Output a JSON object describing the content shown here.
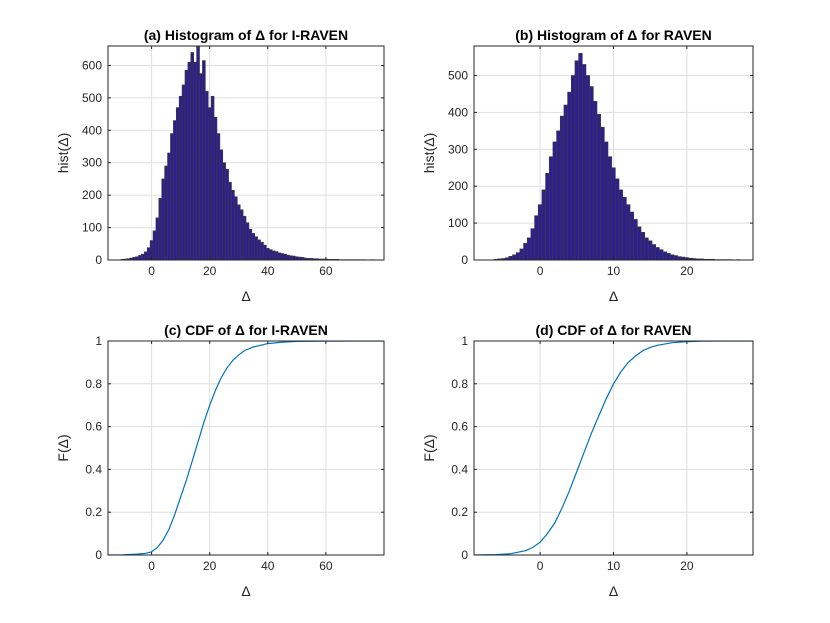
{
  "chart_data": [
    {
      "type": "bar",
      "subtype": "histogram",
      "title": "(a) Histogram of Δ for I-RAVEN",
      "xlabel": "Δ",
      "ylabel": "hist(Δ)",
      "xlim": [
        -15,
        80
      ],
      "ylim": [
        0,
        660
      ],
      "xticks": [
        0,
        20,
        40,
        60
      ],
      "yticks": [
        0,
        100,
        200,
        300,
        400,
        500,
        600
      ],
      "grid": true,
      "bar_color": "#2e1f8e",
      "bin_width": 1,
      "x": [
        -10,
        -9,
        -8,
        -7,
        -6,
        -5,
        -4,
        -3,
        -2,
        -1,
        0,
        1,
        2,
        3,
        4,
        5,
        6,
        7,
        8,
        9,
        10,
        11,
        12,
        13,
        14,
        15,
        16,
        17,
        18,
        19,
        20,
        21,
        22,
        23,
        24,
        25,
        26,
        27,
        28,
        29,
        30,
        31,
        32,
        33,
        34,
        35,
        36,
        37,
        38,
        39,
        40,
        41,
        42,
        43,
        44,
        45,
        46,
        47,
        48,
        49,
        50,
        51,
        52,
        53,
        54,
        55,
        56,
        57,
        58,
        59,
        60,
        61,
        62,
        63,
        64,
        65,
        66,
        67,
        68,
        69,
        70,
        71,
        72,
        73,
        74,
        75,
        76,
        77,
        78,
        79
      ],
      "values": [
        2,
        3,
        4,
        6,
        8,
        10,
        14,
        18,
        25,
        38,
        60,
        90,
        130,
        190,
        250,
        290,
        330,
        390,
        430,
        470,
        505,
        540,
        585,
        610,
        640,
        610,
        660,
        575,
        615,
        520,
        470,
        505,
        440,
        390,
        340,
        300,
        280,
        240,
        215,
        195,
        170,
        155,
        135,
        115,
        95,
        82,
        72,
        62,
        55,
        46,
        36,
        32,
        28,
        26,
        22,
        20,
        18,
        15,
        13,
        12,
        10,
        9,
        8,
        6,
        5,
        5,
        4,
        4,
        3,
        3,
        3,
        2,
        2,
        2,
        2,
        1,
        1,
        1,
        1,
        1,
        1,
        1,
        1,
        1,
        0,
        0,
        1,
        0,
        0,
        0
      ]
    },
    {
      "type": "bar",
      "subtype": "histogram",
      "title": "(b) Histogram of Δ for RAVEN",
      "xlabel": "Δ",
      "ylabel": "hist(Δ)",
      "xlim": [
        -9,
        29
      ],
      "ylim": [
        0,
        580
      ],
      "xticks": [
        0,
        10,
        20
      ],
      "yticks": [
        0,
        100,
        200,
        300,
        400,
        500
      ],
      "grid": true,
      "bar_color": "#2e1f8e",
      "bin_width": 0.5,
      "x": [
        -6,
        -5.5,
        -5,
        -4.5,
        -4,
        -3.5,
        -3,
        -2.5,
        -2,
        -1.5,
        -1,
        -0.5,
        0,
        0.5,
        1,
        1.5,
        2,
        2.5,
        3,
        3.5,
        4,
        4.5,
        5,
        5.5,
        6,
        6.5,
        7,
        7.5,
        8,
        8.5,
        9,
        9.5,
        10,
        10.5,
        11,
        11.5,
        12,
        12.5,
        13,
        13.5,
        14,
        14.5,
        15,
        15.5,
        16,
        16.5,
        17,
        17.5,
        18,
        18.5,
        19,
        19.5,
        20,
        20.5,
        21,
        21.5,
        22,
        22.5,
        23,
        23.5,
        24,
        24.5,
        25,
        25.5,
        26,
        26.5,
        27
      ],
      "values": [
        2,
        3,
        4,
        6,
        10,
        14,
        20,
        30,
        45,
        60,
        85,
        120,
        150,
        190,
        235,
        280,
        320,
        350,
        390,
        420,
        455,
        500,
        540,
        560,
        530,
        500,
        470,
        430,
        395,
        360,
        320,
        280,
        250,
        220,
        190,
        170,
        150,
        130,
        110,
        90,
        75,
        60,
        52,
        42,
        34,
        28,
        22,
        18,
        14,
        12,
        9,
        8,
        6,
        5,
        4,
        3,
        3,
        2,
        2,
        2,
        1,
        1,
        1,
        1,
        1,
        0,
        1
      ]
    },
    {
      "type": "line",
      "subtype": "cdf",
      "title": "(c) CDF of Δ for I-RAVEN",
      "xlabel": "Δ",
      "ylabel": "F(Δ)",
      "xlim": [
        -15,
        80
      ],
      "ylim": [
        0,
        1
      ],
      "xticks": [
        0,
        20,
        40,
        60
      ],
      "yticks": [
        0,
        0.2,
        0.4,
        0.6,
        0.8,
        1
      ],
      "grid": true,
      "line_color": "#0072bd",
      "x": [
        -15,
        -10,
        -5,
        -2,
        0,
        2,
        4,
        6,
        8,
        10,
        12,
        14,
        16,
        18,
        20,
        22,
        24,
        26,
        28,
        30,
        32,
        35,
        40,
        45,
        50,
        60,
        70,
        80
      ],
      "y": [
        0,
        0.001,
        0.004,
        0.008,
        0.015,
        0.035,
        0.07,
        0.12,
        0.19,
        0.27,
        0.35,
        0.44,
        0.53,
        0.62,
        0.7,
        0.77,
        0.83,
        0.875,
        0.91,
        0.935,
        0.955,
        0.972,
        0.988,
        0.995,
        0.998,
        0.999,
        1.0,
        1.0
      ]
    },
    {
      "type": "line",
      "subtype": "cdf",
      "title": "(d) CDF of Δ for RAVEN",
      "xlabel": "Δ",
      "ylabel": "F(Δ)",
      "xlim": [
        -9,
        29
      ],
      "ylim": [
        0,
        1
      ],
      "xticks": [
        0,
        10,
        20
      ],
      "yticks": [
        0,
        0.2,
        0.4,
        0.6,
        0.8,
        1
      ],
      "grid": true,
      "line_color": "#0072bd",
      "x": [
        -9,
        -6,
        -4,
        -2,
        -1,
        0,
        1,
        2,
        3,
        4,
        5,
        6,
        7,
        8,
        9,
        10,
        11,
        12,
        13,
        14,
        15,
        16,
        18,
        20,
        22,
        25,
        29
      ],
      "y": [
        0,
        0.002,
        0.006,
        0.02,
        0.035,
        0.06,
        0.1,
        0.15,
        0.22,
        0.3,
        0.39,
        0.48,
        0.57,
        0.65,
        0.73,
        0.8,
        0.855,
        0.9,
        0.93,
        0.955,
        0.97,
        0.98,
        0.992,
        0.997,
        0.999,
        1.0,
        1.0
      ]
    }
  ]
}
